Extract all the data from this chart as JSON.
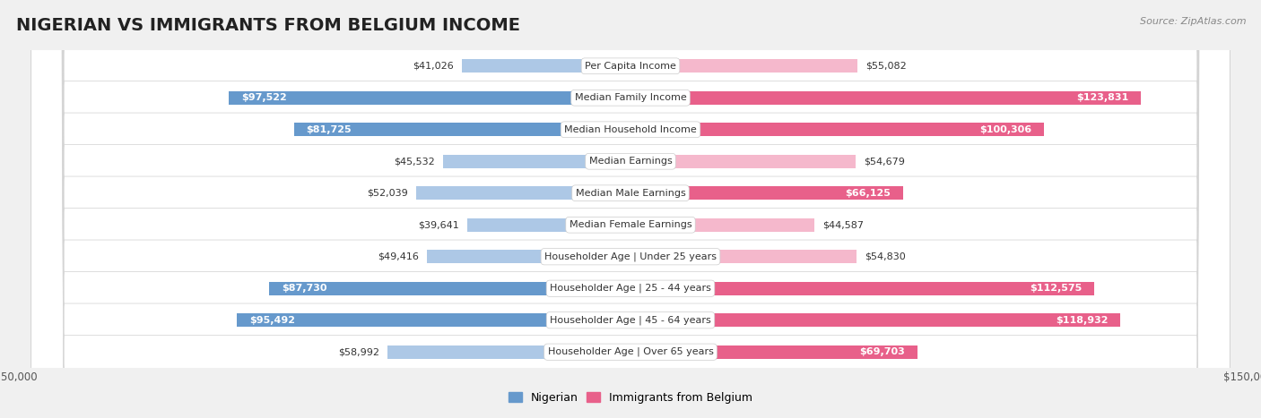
{
  "title": "NIGERIAN VS IMMIGRANTS FROM BELGIUM INCOME",
  "source": "Source: ZipAtlas.com",
  "categories": [
    "Per Capita Income",
    "Median Family Income",
    "Median Household Income",
    "Median Earnings",
    "Median Male Earnings",
    "Median Female Earnings",
    "Householder Age | Under 25 years",
    "Householder Age | 25 - 44 years",
    "Householder Age | 45 - 64 years",
    "Householder Age | Over 65 years"
  ],
  "nigerian_values": [
    41026,
    97522,
    81725,
    45532,
    52039,
    39641,
    49416,
    87730,
    95492,
    58992
  ],
  "belgium_values": [
    55082,
    123831,
    100306,
    54679,
    66125,
    44587,
    54830,
    112575,
    118932,
    69703
  ],
  "nigerian_labels": [
    "$41,026",
    "$97,522",
    "$81,725",
    "$45,532",
    "$52,039",
    "$39,641",
    "$49,416",
    "$87,730",
    "$95,492",
    "$58,992"
  ],
  "belgium_labels": [
    "$55,082",
    "$123,831",
    "$100,306",
    "$54,679",
    "$66,125",
    "$44,587",
    "$54,830",
    "$112,575",
    "$118,932",
    "$69,703"
  ],
  "nigerian_color_light": "#adc8e6",
  "nigerian_color_dark": "#6699cc",
  "belgium_color_light": "#f5b8cc",
  "belgium_color_dark": "#e8608a",
  "max_value": 150000,
  "bar_height": 0.62,
  "background_color": "#f0f0f0",
  "row_bg_color": "#ffffff",
  "title_fontsize": 14,
  "source_fontsize": 8,
  "label_fontsize": 8,
  "category_fontsize": 8,
  "nigerian_threshold": 65000,
  "belgium_threshold": 65000
}
